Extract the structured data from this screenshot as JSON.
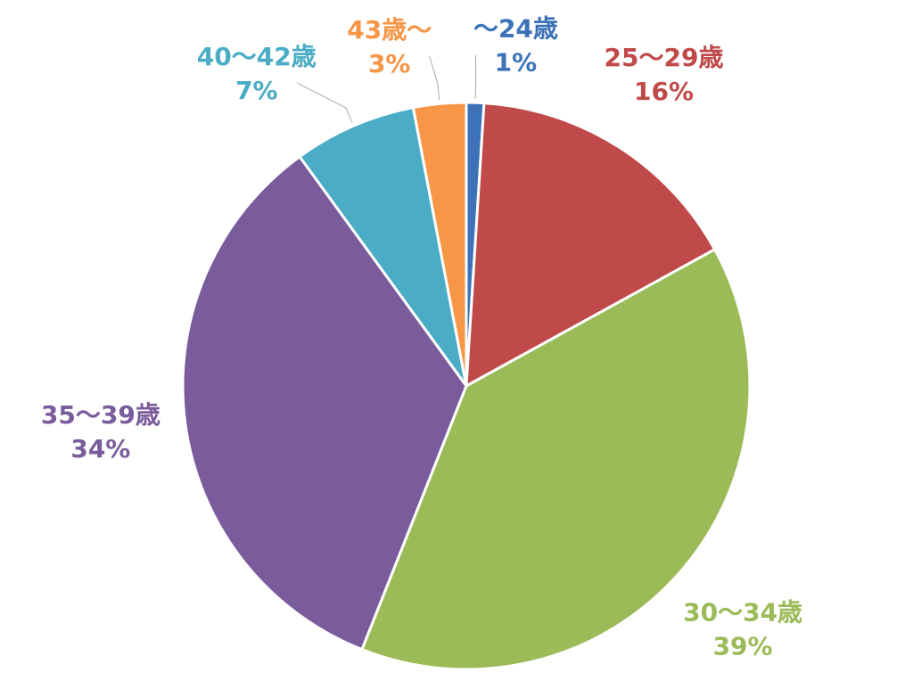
{
  "chart_data": {
    "type": "pie",
    "categories": [
      "～24歳",
      "25～29歳",
      "30～34歳",
      "35～39歳",
      "40～42歳",
      "43歳～"
    ],
    "values": [
      1,
      16,
      39,
      34,
      7,
      3
    ],
    "value_labels": [
      "1%",
      "16%",
      "39%",
      "34%",
      "7%",
      "3%"
    ],
    "colors": [
      "#3b72b8",
      "#c04a4a",
      "#9bbb59",
      "#7a5b9c",
      "#4bacc6",
      "#f79646"
    ]
  }
}
